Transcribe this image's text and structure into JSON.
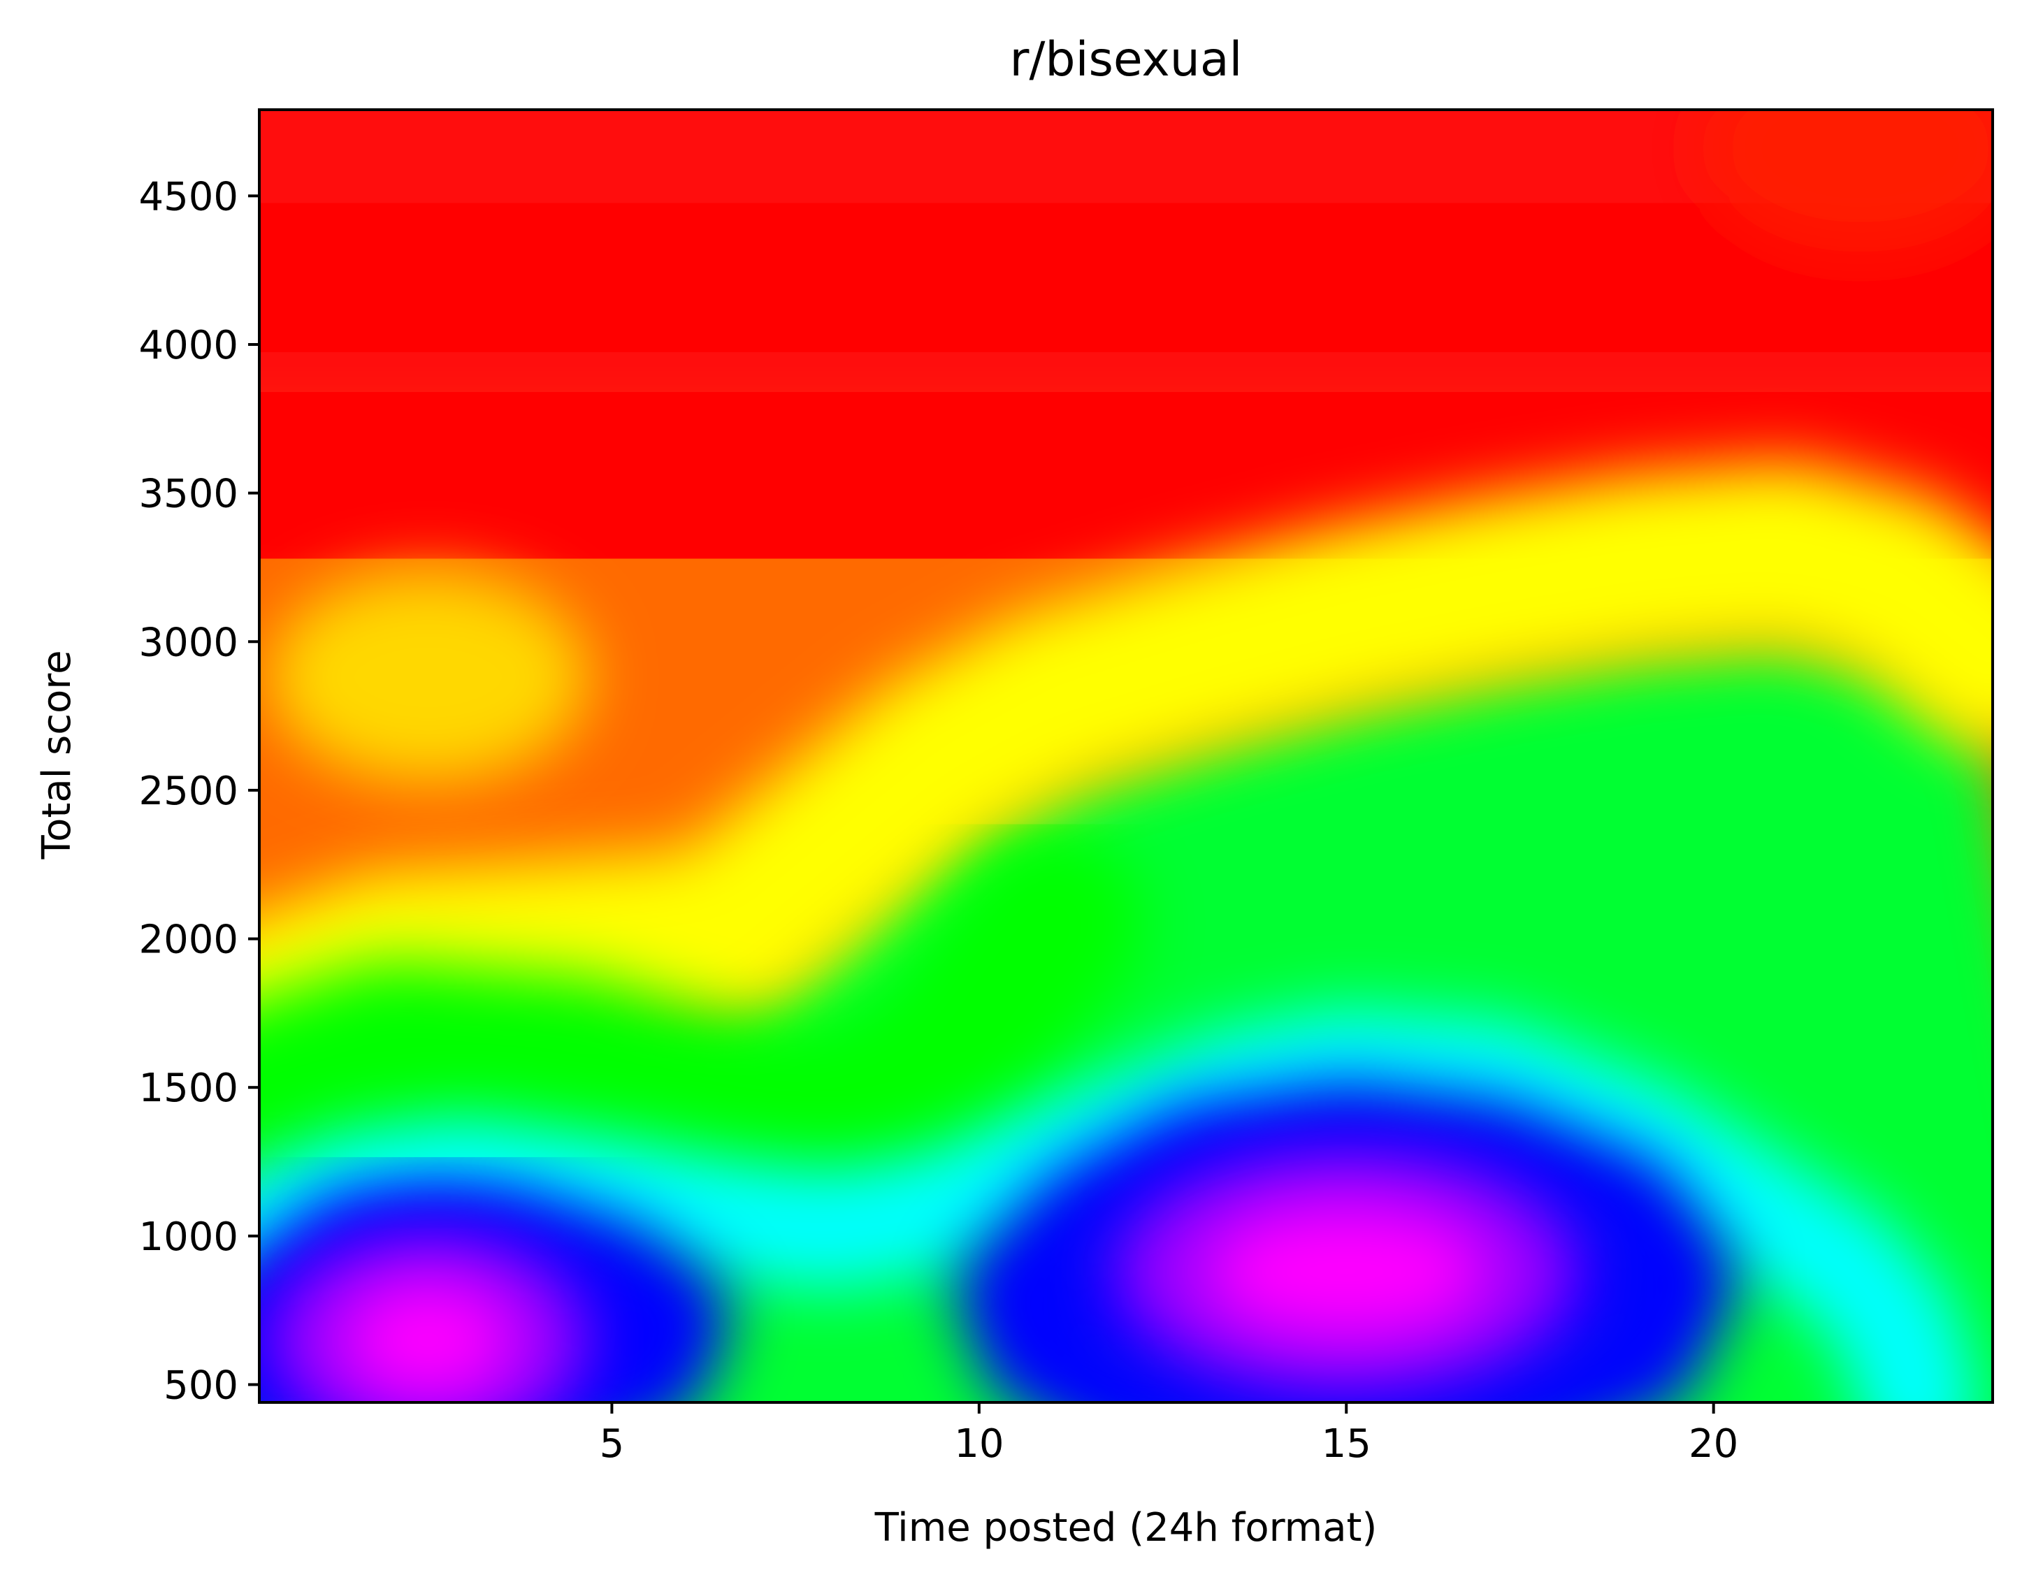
{
  "chart_data": {
    "type": "heatmap",
    "title": "r/bisexual",
    "xlabel": "Time posted (24h format)",
    "ylabel": "Total score",
    "xlim": [
      0.2,
      23.8
    ],
    "ylim": [
      440,
      4790
    ],
    "xticks": [
      5,
      10,
      15,
      20
    ],
    "yticks": [
      500,
      1000,
      1500,
      2000,
      2500,
      3000,
      3500,
      4000,
      4500
    ],
    "colormap": "gist_rainbow",
    "colormap_stops": [
      "#ff00ff",
      "#0000ff",
      "#00ffff",
      "#00ff00",
      "#ffff00",
      "#ff0000",
      "#ff0035"
    ],
    "density_hotspots": [
      {
        "x": 2.5,
        "y": 650,
        "level": "highest",
        "color": "#ff00ff"
      },
      {
        "x": 15.0,
        "y": 880,
        "level": "highest",
        "color": "#ff00ff"
      }
    ],
    "contour_paths": [
      {
        "level": "blue",
        "color": "#0000ff",
        "points": [
          [
            0.2,
            720
          ],
          [
            1.5,
            960
          ],
          [
            2.5,
            1000
          ],
          [
            3.5,
            980
          ],
          [
            5.0,
            860
          ],
          [
            5.8,
            720
          ],
          [
            5.5,
            560
          ],
          [
            4.5,
            470
          ],
          [
            0.2,
            470
          ]
        ]
      },
      {
        "level": "blue",
        "color": "#0000ff",
        "points": [
          [
            10.5,
            800
          ],
          [
            11.5,
            1050
          ],
          [
            13.0,
            1250
          ],
          [
            15.0,
            1320
          ],
          [
            17.0,
            1260
          ],
          [
            18.8,
            1080
          ],
          [
            19.5,
            850
          ],
          [
            19.0,
            600
          ],
          [
            17.5,
            470
          ],
          [
            12.0,
            470
          ],
          [
            10.8,
            620
          ]
        ]
      },
      {
        "level": "cyan",
        "color": "#00ffff",
        "points": [
          [
            0.2,
            1020
          ],
          [
            1.5,
            1150
          ],
          [
            3.0,
            1200
          ],
          [
            5.0,
            1130
          ],
          [
            6.5,
            1060
          ],
          [
            8.0,
            1020
          ],
          [
            9.5,
            1080
          ],
          [
            11.5,
            1300
          ],
          [
            13.5,
            1500
          ],
          [
            15.0,
            1570
          ],
          [
            17.0,
            1530
          ],
          [
            19.0,
            1330
          ],
          [
            20.5,
            1100
          ],
          [
            21.8,
            900
          ],
          [
            22.5,
            700
          ],
          [
            22.8,
            440
          ]
        ]
      },
      {
        "level": "green",
        "color": "#00ff00",
        "points": [
          [
            0.2,
            1480
          ],
          [
            2.0,
            1620
          ],
          [
            4.5,
            1570
          ],
          [
            6.5,
            1420
          ],
          [
            8.0,
            1380
          ],
          [
            9.5,
            1550
          ],
          [
            10.5,
            1900
          ],
          [
            11.0,
            2050
          ]
        ]
      },
      {
        "level": "yellow",
        "color": "#ffff00",
        "points": [
          [
            0.2,
            1760
          ],
          [
            2.0,
            1920
          ],
          [
            4.0,
            1950
          ],
          [
            6.5,
            2000
          ],
          [
            8.0,
            2300
          ],
          [
            9.5,
            2600
          ],
          [
            11.0,
            2800
          ],
          [
            13.0,
            2950
          ],
          [
            15.0,
            3080
          ],
          [
            17.0,
            3180
          ],
          [
            19.0,
            3260
          ],
          [
            21.0,
            3300
          ],
          [
            22.5,
            3200
          ],
          [
            23.8,
            2950
          ]
        ]
      },
      {
        "level": "red",
        "color": "#ff0000",
        "points": [
          [
            0.2,
            3700
          ],
          [
            2.0,
            3700
          ],
          [
            4.5,
            3700
          ],
          [
            7.0,
            3450
          ],
          [
            8.5,
            3450
          ],
          [
            10.0,
            3550
          ],
          [
            12.0,
            3500
          ],
          [
            14.0,
            3480
          ],
          [
            16.0,
            3550
          ],
          [
            18.0,
            3600
          ],
          [
            19.5,
            3620
          ],
          [
            21.0,
            3500
          ],
          [
            22.5,
            3450
          ],
          [
            23.8,
            3420
          ]
        ]
      },
      {
        "level": "red",
        "color": "#ff0000",
        "points": [
          [
            0.2,
            4250
          ],
          [
            3.0,
            4100
          ],
          [
            6.0,
            4150
          ],
          [
            9.0,
            4300
          ],
          [
            12.0,
            4350
          ],
          [
            16.0,
            4250
          ],
          [
            18.5,
            4150
          ],
          [
            21.0,
            4250
          ],
          [
            23.8,
            4350
          ]
        ]
      }
    ],
    "hotspot_glow": [
      {
        "x": 2.5,
        "y": 2880,
        "color": "#ffd800"
      },
      {
        "x": 22.0,
        "y": 4660,
        "color": "#ff1a00"
      }
    ]
  }
}
